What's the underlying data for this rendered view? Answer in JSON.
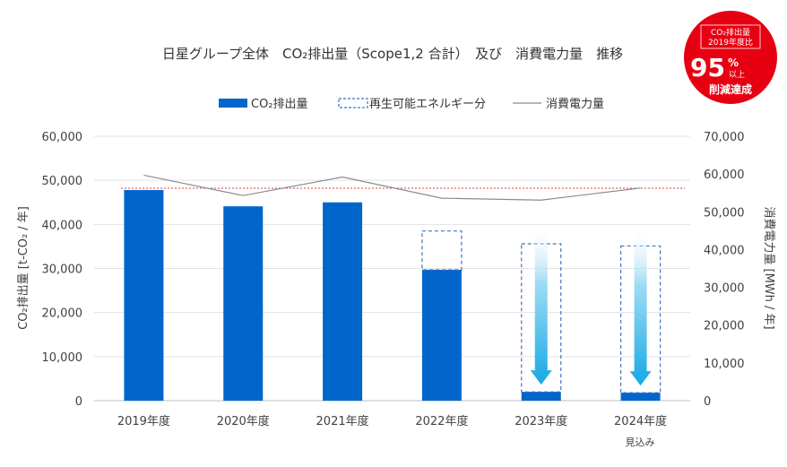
{
  "chart_data": {
    "type": "bar",
    "title": "日星グループ全体　CO₂排出量（Scope1,2 合計）　及び　消費電力量　推移",
    "categories": [
      "2019年度",
      "2020年度",
      "2021年度",
      "2022年度",
      "2023年度",
      "2024年度"
    ],
    "category_note": "見込み",
    "ylabel_left": "CO₂排出量 [t-CO₂ / 年]",
    "ylabel_right": "消費電力量 [MWh / 年]",
    "ylim_left": [
      0,
      60000
    ],
    "ylim_right": [
      0,
      70000
    ],
    "yticks_left": [
      "0",
      "10,000",
      "20,000",
      "30,000",
      "40,000",
      "50,000",
      "60,000"
    ],
    "yticks_right": [
      "0",
      "10,000",
      "20,000",
      "30,000",
      "40,000",
      "50,000",
      "60,000",
      "70,000"
    ],
    "grid": true,
    "legend_position": "top",
    "series": [
      {
        "name": "CO₂排出量",
        "type": "bar",
        "axis": "left",
        "color": "#0066cc",
        "values": [
          47800,
          44100,
          45000,
          29700,
          2000,
          1800
        ]
      },
      {
        "name": "再生可能エネルギー分",
        "type": "stacked-dashed-bar",
        "axis": "left",
        "color": "#4472c4",
        "values": [
          0,
          0,
          0,
          8800,
          33600,
          33300
        ]
      },
      {
        "name": "消費電力量",
        "type": "line",
        "axis": "right",
        "color": "#8c8c8c",
        "values": [
          59700,
          54300,
          59200,
          53600,
          53100,
          56300
        ]
      }
    ],
    "reference_line": {
      "axis": "left",
      "value": 48200,
      "color": "#e03c3c"
    },
    "badge": {
      "line1": "CO₂排出量",
      "line2": "2019年度比",
      "percent": "95",
      "percent_unit": "%",
      "suffix_small": "以上",
      "line3": "削減達成",
      "color": "#e60012"
    }
  }
}
